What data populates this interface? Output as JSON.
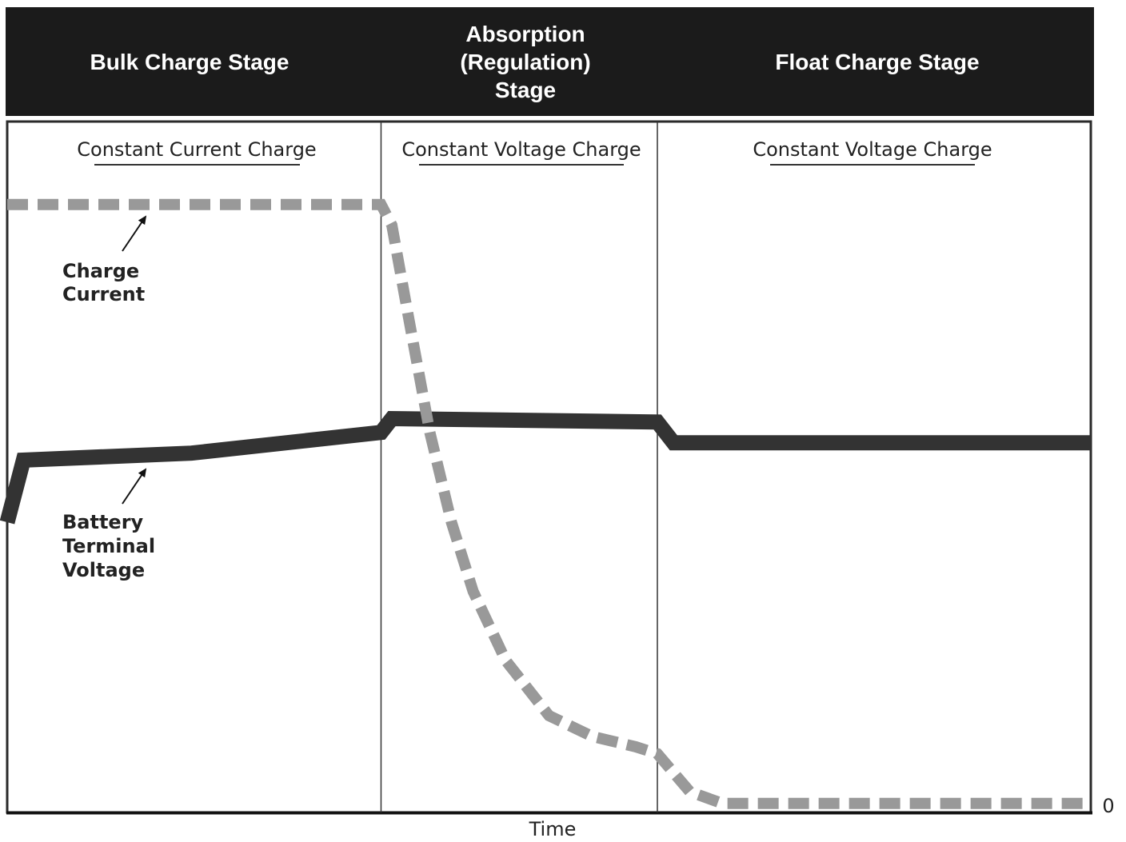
{
  "stages": [
    {
      "title": "Bulk Charge Stage",
      "mode": "Constant Current Charge"
    },
    {
      "title": "Absorption\n(Regulation)\nStage",
      "mode": "Constant Voltage Charge"
    },
    {
      "title": "Float Charge Stage",
      "mode": "Constant Voltage Charge"
    }
  ],
  "chart_data": {
    "type": "line",
    "title": "",
    "xlabel": "Time",
    "ylabel": "",
    "y_tick_labels": [
      "0"
    ],
    "xlim": [
      0,
      100
    ],
    "ylim": [
      0,
      100
    ],
    "grid": false,
    "stage_boundaries": [
      34.5,
      60
    ],
    "series": [
      {
        "name": "Charge Current",
        "style": "dashed",
        "color": "#999999",
        "points": [
          [
            0,
            88
          ],
          [
            34.5,
            88
          ],
          [
            35.5,
            85
          ],
          [
            37,
            72
          ],
          [
            39,
            55
          ],
          [
            41,
            42
          ],
          [
            43,
            32
          ],
          [
            46,
            22
          ],
          [
            50,
            14
          ],
          [
            54,
            11
          ],
          [
            58,
            9.5
          ],
          [
            60,
            8.5
          ],
          [
            63,
            3
          ],
          [
            66,
            1.3
          ],
          [
            100,
            1.3
          ]
        ]
      },
      {
        "name": "Battery Terminal Voltage",
        "style": "solid",
        "color": "#333333",
        "points": [
          [
            0,
            42
          ],
          [
            1.5,
            51
          ],
          [
            17,
            52
          ],
          [
            34.5,
            55
          ],
          [
            35.5,
            57
          ],
          [
            60,
            56.5
          ],
          [
            61.5,
            53.5
          ],
          [
            100,
            53.5
          ]
        ]
      }
    ],
    "annotations": [
      {
        "lines": [
          "Charge",
          "Current"
        ],
        "series": "Charge Current"
      },
      {
        "lines": [
          "Battery",
          "Terminal",
          "Voltage"
        ],
        "series": "Battery Terminal Voltage"
      }
    ]
  }
}
